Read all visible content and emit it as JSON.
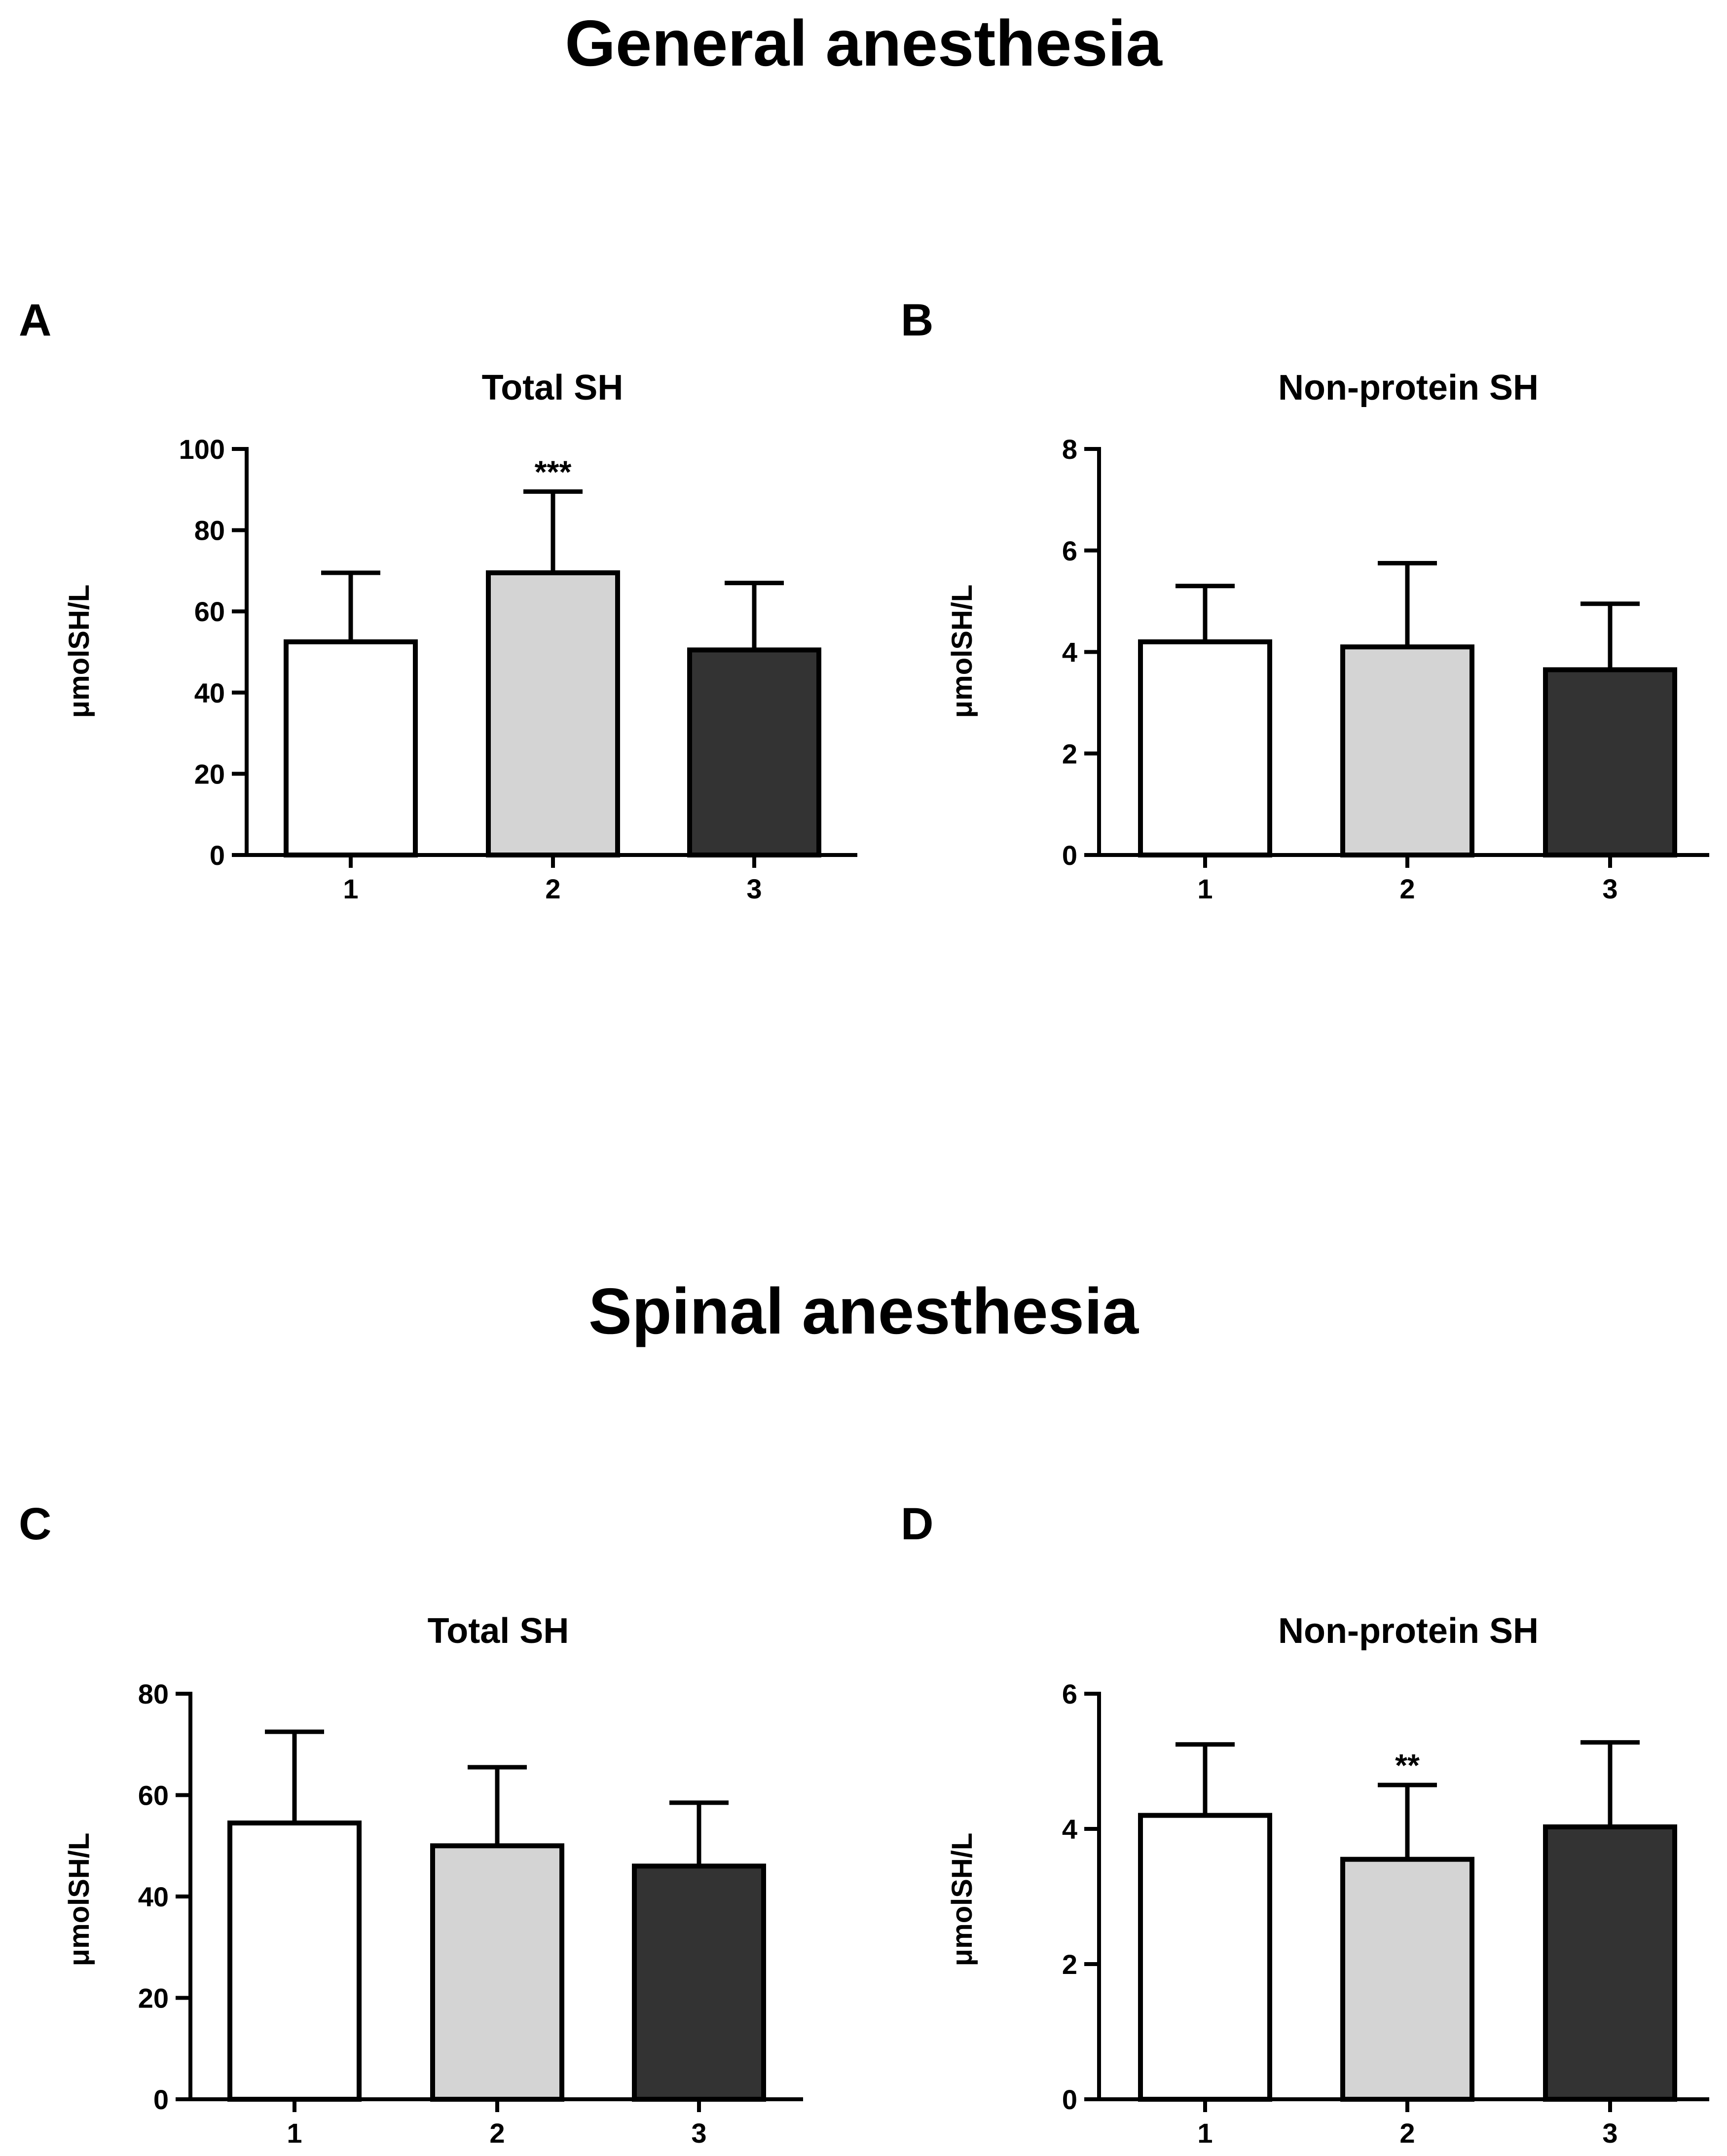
{
  "sections": {
    "general": "General anesthesia",
    "spinal": "Spinal anesthesia"
  },
  "colors": {
    "group1": "#ffffff",
    "group2": "#d4d4d4",
    "group3": "#333333",
    "stroke": "#000000"
  },
  "chart_data": [
    {
      "panel": "A",
      "type": "bar",
      "title": "Total SH",
      "ylabel": "μmolSH/L",
      "categories": [
        "1",
        "2",
        "3"
      ],
      "values": [
        52.5,
        69.5,
        50.5
      ],
      "errors": [
        17,
        20,
        16.5
      ],
      "ylim": [
        0,
        100
      ],
      "yticks": [
        0,
        20,
        40,
        60,
        80,
        100
      ],
      "annotations": [
        "",
        "***",
        ""
      ]
    },
    {
      "panel": "B",
      "type": "bar",
      "title": "Non-protein SH",
      "ylabel": "μmolSH/L",
      "categories": [
        "1",
        "2",
        "3"
      ],
      "values": [
        4.2,
        4.1,
        3.65
      ],
      "errors": [
        1.1,
        1.65,
        1.3
      ],
      "ylim": [
        0,
        8
      ],
      "yticks": [
        0,
        2,
        4,
        6,
        8
      ],
      "annotations": [
        "",
        "",
        ""
      ]
    },
    {
      "panel": "C",
      "type": "bar",
      "title": "Total SH",
      "ylabel": "μmolSH/L",
      "categories": [
        "1",
        "2",
        "3"
      ],
      "values": [
        54.5,
        50,
        46
      ],
      "errors": [
        18,
        15.5,
        12.5
      ],
      "ylim": [
        0,
        80
      ],
      "yticks": [
        0,
        20,
        40,
        60,
        80
      ],
      "annotations": [
        "",
        "",
        ""
      ]
    },
    {
      "panel": "D",
      "type": "bar",
      "title": "Non-protein SH",
      "ylabel": "μmolSH/L",
      "categories": [
        "1",
        "2",
        "3"
      ],
      "values": [
        4.2,
        3.55,
        4.03
      ],
      "errors": [
        1.05,
        1.1,
        1.25
      ],
      "ylim": [
        0,
        6
      ],
      "yticks": [
        0,
        2,
        4,
        6
      ],
      "annotations": [
        "",
        "**",
        ""
      ]
    }
  ]
}
